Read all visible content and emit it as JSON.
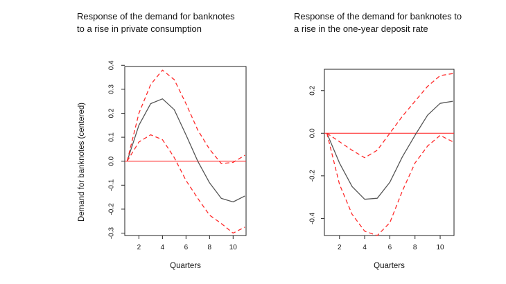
{
  "colors": {
    "frame": "#222222",
    "irf": "#555555",
    "band": "#ff2a2a",
    "zero": "#ff2a2a"
  },
  "chart_data": [
    {
      "type": "line",
      "title_lines": [
        "Response of the demand for banknotes",
        "to a rise in private consumption"
      ],
      "xlabel": "Quarters",
      "ylabel": "Demand for banknotes (centered)",
      "xlim": [
        0.8,
        11.1
      ],
      "ylim": [
        -0.31,
        0.395
      ],
      "xticks": [
        "2",
        "4",
        "6",
        "8",
        "10"
      ],
      "yticks": [
        "0.4",
        "0.3",
        "0.2",
        "0.1",
        "0.0",
        "-0.1",
        "-0.2",
        "-0.3"
      ],
      "grid": false,
      "reference_line": 0,
      "x": [
        1,
        2,
        3,
        4,
        5,
        6,
        7,
        8,
        9,
        10,
        11
      ],
      "series": [
        {
          "role": "estimate",
          "style": "solid",
          "values": [
            0.0,
            0.15,
            0.24,
            0.26,
            0.215,
            0.11,
            0.0,
            -0.09,
            -0.155,
            -0.17,
            -0.145
          ]
        },
        {
          "role": "upper band",
          "style": "dashed",
          "values": [
            0.0,
            0.2,
            0.32,
            0.38,
            0.34,
            0.24,
            0.13,
            0.05,
            -0.01,
            -0.005,
            0.025
          ]
        },
        {
          "role": "lower band",
          "style": "dashed",
          "values": [
            0.0,
            0.08,
            0.11,
            0.09,
            0.015,
            -0.08,
            -0.155,
            -0.225,
            -0.26,
            -0.3,
            -0.275
          ]
        }
      ]
    },
    {
      "type": "line",
      "title_lines": [
        "Response of the demand for banknotes to",
        "a rise in the one-year deposit rate"
      ],
      "xlabel": "Quarters",
      "ylabel": "",
      "xlim": [
        0.8,
        11.1
      ],
      "ylim": [
        -0.48,
        0.3
      ],
      "xticks": [
        "2",
        "4",
        "6",
        "8",
        "10"
      ],
      "yticks": [
        "0.2",
        "0.0",
        "-0.2",
        "-0.4"
      ],
      "grid": false,
      "reference_line": 0,
      "x": [
        1,
        2,
        3,
        4,
        5,
        6,
        7,
        8,
        9,
        10,
        11
      ],
      "series": [
        {
          "role": "estimate",
          "style": "solid",
          "values": [
            0.0,
            -0.14,
            -0.25,
            -0.31,
            -0.305,
            -0.23,
            -0.11,
            -0.01,
            0.085,
            0.14,
            0.15
          ]
        },
        {
          "role": "upper band",
          "style": "dashed",
          "values": [
            0.0,
            -0.04,
            -0.08,
            -0.115,
            -0.08,
            0.0,
            0.08,
            0.15,
            0.22,
            0.27,
            0.28
          ]
        },
        {
          "role": "lower band",
          "style": "dashed",
          "values": [
            0.0,
            -0.24,
            -0.38,
            -0.46,
            -0.48,
            -0.42,
            -0.27,
            -0.14,
            -0.06,
            -0.01,
            -0.04
          ]
        }
      ]
    }
  ]
}
